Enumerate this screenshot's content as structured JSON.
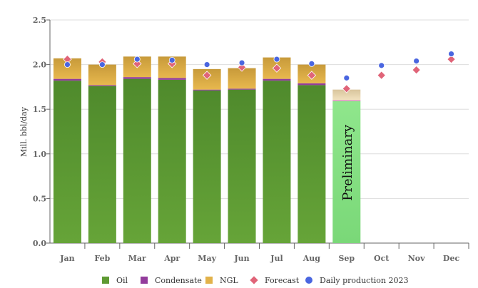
{
  "chart_data": {
    "type": "bar",
    "stacked": true,
    "ylabel": "Mill. bbl/day",
    "ylim": [
      0,
      2.5
    ],
    "yticks": [
      "0.0",
      "0.5",
      "1.0",
      "1.5",
      "2.0",
      "2.5"
    ],
    "grid": true,
    "legend_position": "bottom",
    "categories": [
      "Jan",
      "Feb",
      "Mar",
      "Apr",
      "May",
      "Jun",
      "Jul",
      "Aug",
      "Sep",
      "Oct",
      "Nov",
      "Dec"
    ],
    "series": [
      {
        "name": "Oil",
        "kind": "bar",
        "color": "#5e9a33",
        "values": [
          1.82,
          1.76,
          1.84,
          1.83,
          1.71,
          1.72,
          1.82,
          1.77,
          1.59,
          null,
          null,
          null
        ]
      },
      {
        "name": "Condensate",
        "kind": "bar",
        "color": "#933c9c",
        "values": [
          0.02,
          0.01,
          0.02,
          0.02,
          0.01,
          0.01,
          0.02,
          0.02,
          0.01,
          null,
          null,
          null
        ]
      },
      {
        "name": "NGL",
        "kind": "bar",
        "color": "#e2b24a",
        "values": [
          0.23,
          0.23,
          0.23,
          0.24,
          0.23,
          0.23,
          0.24,
          0.21,
          0.12,
          null,
          null,
          null
        ]
      },
      {
        "name": "Forecast",
        "kind": "diamond",
        "color": "#e06478",
        "values": [
          2.06,
          2.03,
          2.01,
          2.01,
          1.88,
          1.97,
          1.96,
          1.88,
          1.73,
          1.88,
          1.94,
          2.06
        ]
      },
      {
        "name": "Daily production 2023",
        "kind": "dot",
        "color": "#4a66e0",
        "values": [
          2.0,
          2.0,
          2.06,
          2.05,
          2.0,
          2.02,
          2.06,
          2.01,
          1.85,
          1.99,
          2.04,
          2.12
        ]
      }
    ],
    "annotations": [
      {
        "category": "Sep",
        "text": "Preliminary",
        "oil_color": "#8fe68c",
        "ngl_color": "#ecd9b4"
      }
    ]
  }
}
